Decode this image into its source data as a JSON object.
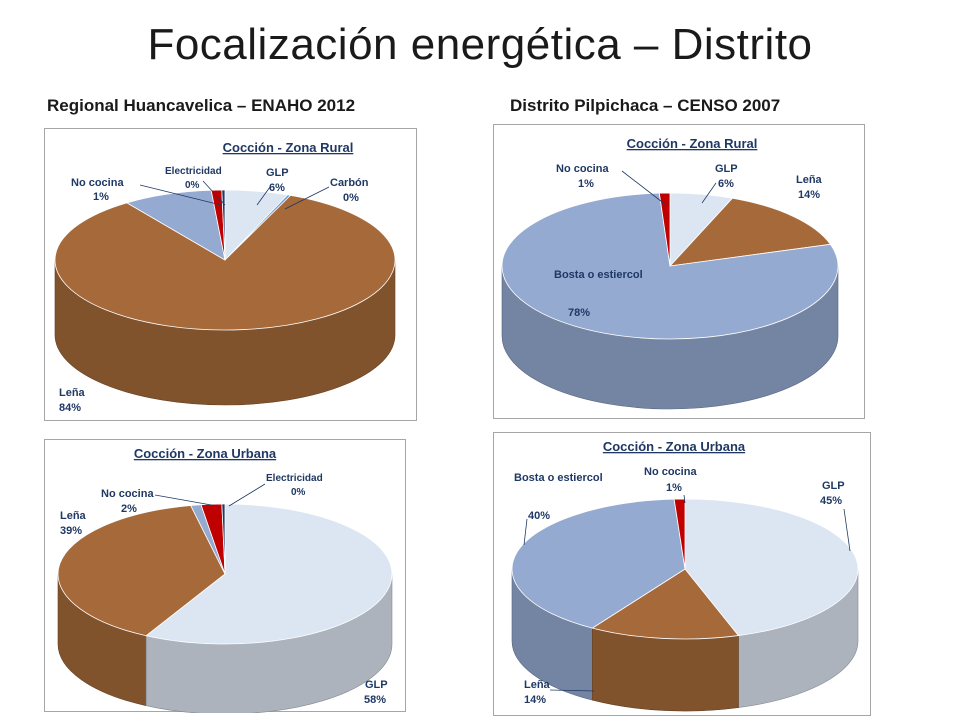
{
  "header": {
    "title": "Focalización energética – Distrito",
    "left_subtitle": "Regional Huancavelica – ENAHO 2012",
    "right_subtitle": "Distrito Pilpichaca – CENSO 2007"
  },
  "colors": {
    "lena": "#a66a3a",
    "glp": "#dce6f2",
    "bosta": "#95aad1",
    "no_cocina": "#c00000",
    "electricidad": "#1f3864",
    "carbon": "#6b9bd1",
    "label": "#1f3864"
  },
  "chart_data": [
    {
      "type": "pie",
      "title": "Cocción - Zona Rural",
      "slices": [
        {
          "key": "glp",
          "name": "GLP",
          "value": 6,
          "pct": "6%"
        },
        {
          "key": "carbon",
          "name": "Carbón",
          "value": 0.3,
          "pct": "0%"
        },
        {
          "key": "lena",
          "name": "Leña",
          "value": 84,
          "pct": "84%"
        },
        {
          "key": "bosta",
          "name": "",
          "value": 8.5,
          "pct": ""
        },
        {
          "key": "no_cocina",
          "name": "No cocina",
          "value": 1,
          "pct": "1%"
        },
        {
          "key": "electricidad",
          "name": "Electricidad",
          "value": 0.3,
          "pct": "0%"
        }
      ]
    },
    {
      "type": "pie",
      "title": "Cocción - Zona Rural",
      "slices": [
        {
          "key": "glp",
          "name": "GLP",
          "value": 6,
          "pct": "6%"
        },
        {
          "key": "lena",
          "name": "Leña",
          "value": 14,
          "pct": "14%"
        },
        {
          "key": "bosta",
          "name": "Bosta o estiercol",
          "value": 78,
          "pct": "78%"
        },
        {
          "key": "no_cocina",
          "name": "No cocina",
          "value": 1,
          "pct": "1%"
        }
      ]
    },
    {
      "type": "pie",
      "title": "Cocción - Zona Urbana",
      "slices": [
        {
          "key": "glp",
          "name": "GLP",
          "value": 58,
          "pct": "58%"
        },
        {
          "key": "lena",
          "name": "Leña",
          "value": 39,
          "pct": "39%"
        },
        {
          "key": "bosta",
          "name": "",
          "value": 1,
          "pct": ""
        },
        {
          "key": "no_cocina",
          "name": "No cocina",
          "value": 2,
          "pct": "2%"
        },
        {
          "key": "electricidad",
          "name": "Electricidad",
          "value": 0.3,
          "pct": "0%"
        }
      ]
    },
    {
      "type": "pie",
      "title": "Cocción - Zona Urbana",
      "slices": [
        {
          "key": "glp",
          "name": "GLP",
          "value": 45,
          "pct": "45%"
        },
        {
          "key": "lena",
          "name": "Leña",
          "value": 14,
          "pct": "14%"
        },
        {
          "key": "bosta",
          "name": "Bosta o estiercol",
          "value": 40,
          "pct": "40%"
        },
        {
          "key": "no_cocina",
          "name": "No cocina",
          "value": 1,
          "pct": "1%"
        }
      ]
    }
  ]
}
